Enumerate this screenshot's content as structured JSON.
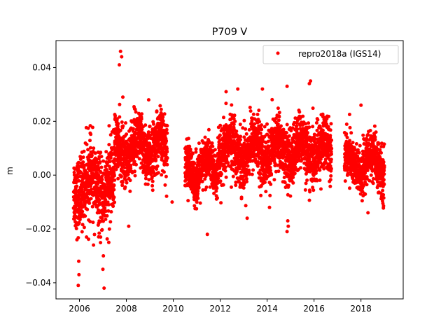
{
  "chart_data": {
    "type": "scatter",
    "title": "P709 V",
    "xlabel": "",
    "ylabel": "m",
    "xlim": [
      2005.0,
      2019.8
    ],
    "ylim": [
      -0.046,
      0.05
    ],
    "xticks": [
      2006,
      2008,
      2010,
      2012,
      2014,
      2016,
      2018
    ],
    "xtick_labels": [
      "2006",
      "2008",
      "2010",
      "2012",
      "2014",
      "2016",
      "2018"
    ],
    "yticks": [
      -0.04,
      -0.02,
      0.0,
      0.02,
      0.04
    ],
    "ytick_labels": [
      "−0.04",
      "−0.02",
      "0.00",
      "0.02",
      "0.04"
    ],
    "grid": false,
    "legend_position": "upper right",
    "marker_color": "#ff0000",
    "series": [
      {
        "name": "repro2018a (IGS14)",
        "segments": [
          {
            "x_start": 2005.75,
            "x_end": 2007.5,
            "center": -0.004,
            "spread": 0.009
          },
          {
            "x_start": 2007.5,
            "x_end": 2009.75,
            "center": 0.01,
            "spread": 0.007
          },
          {
            "x_start": 2010.5,
            "x_end": 2011.9,
            "center": 0.002,
            "spread": 0.006
          },
          {
            "x_start": 2011.9,
            "x_end": 2016.75,
            "center": 0.009,
            "spread": 0.007
          },
          {
            "x_start": 2017.3,
            "x_end": 2019.0,
            "center": 0.004,
            "spread": 0.006
          }
        ],
        "outliers": [
          {
            "x": 2007.75,
            "y": 0.046
          },
          {
            "x": 2007.8,
            "y": 0.044
          },
          {
            "x": 2007.7,
            "y": 0.041
          },
          {
            "x": 2005.95,
            "y": -0.041
          },
          {
            "x": 2005.98,
            "y": -0.037
          },
          {
            "x": 2005.97,
            "y": -0.032
          },
          {
            "x": 2007.05,
            "y": -0.042
          },
          {
            "x": 2007.0,
            "y": -0.035
          },
          {
            "x": 2007.02,
            "y": -0.03
          },
          {
            "x": 2006.6,
            "y": -0.026
          },
          {
            "x": 2006.9,
            "y": -0.023
          },
          {
            "x": 2011.45,
            "y": -0.022
          },
          {
            "x": 2014.85,
            "y": -0.021
          },
          {
            "x": 2014.9,
            "y": -0.019
          },
          {
            "x": 2014.88,
            "y": -0.017
          },
          {
            "x": 2014.85,
            "y": 0.033
          },
          {
            "x": 2015.85,
            "y": 0.035
          },
          {
            "x": 2015.8,
            "y": 0.034
          },
          {
            "x": 2012.75,
            "y": 0.032
          },
          {
            "x": 2013.8,
            "y": 0.032
          },
          {
            "x": 2012.25,
            "y": 0.031
          },
          {
            "x": 2008.95,
            "y": 0.028
          },
          {
            "x": 2018.0,
            "y": 0.026
          },
          {
            "x": 2007.85,
            "y": 0.029
          },
          {
            "x": 2013.15,
            "y": -0.016
          },
          {
            "x": 2009.95,
            "y": -0.01
          },
          {
            "x": 2008.1,
            "y": -0.019
          },
          {
            "x": 2007.25,
            "y": -0.025
          },
          {
            "x": 2006.3,
            "y": -0.023
          },
          {
            "x": 2018.3,
            "y": -0.014
          },
          {
            "x": 2014.1,
            "y": -0.012
          }
        ]
      }
    ]
  }
}
